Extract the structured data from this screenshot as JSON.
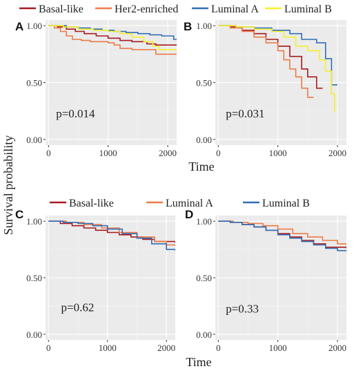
{
  "figure": {
    "y_axis_label": "Survival probability",
    "top_x_label": "Time",
    "bottom_x_label": "Time"
  },
  "legends": {
    "top": [
      {
        "label": "Basal-like",
        "color": "#a8191d"
      },
      {
        "label": "Her2-enriched",
        "color": "#ee7a47"
      },
      {
        "label": "Luminal A",
        "color": "#2f6eb5"
      },
      {
        "label": "Luminal B",
        "color": "#f5f02a"
      }
    ],
    "bottom": [
      {
        "label": "Basal-like",
        "color": "#a8191d"
      },
      {
        "label": "Luminal A",
        "color": "#ee7a47"
      },
      {
        "label": "Luminal B",
        "color": "#2f6eb5"
      }
    ]
  },
  "chart_data": [
    {
      "type": "line",
      "panel_label": "A",
      "annotation": "p=0.014",
      "xlabel": "Time",
      "ylabel": "Survival probability",
      "xlim": [
        -50,
        2150
      ],
      "ylim": [
        -0.05,
        1.05
      ],
      "x_ticks": [
        0,
        1000,
        2000
      ],
      "y_ticks": [
        0.0,
        0.5,
        1.0
      ],
      "y_tick_labels": [
        "0.00",
        "0.50",
        "1.00"
      ],
      "grid": true,
      "legend": "top",
      "series": [
        {
          "name": "Basal-like",
          "color": "#a8191d",
          "x": [
            0,
            150,
            300,
            450,
            600,
            800,
            1000,
            1200,
            1400,
            1650,
            1800,
            2150
          ],
          "y": [
            1.0,
            0.99,
            0.97,
            0.95,
            0.93,
            0.91,
            0.89,
            0.87,
            0.86,
            0.84,
            0.83,
            0.83
          ]
        },
        {
          "name": "Her2-enriched",
          "color": "#ee7a47",
          "x": [
            0,
            100,
            200,
            300,
            400,
            550,
            700,
            1000,
            1100,
            1200,
            1400,
            1800,
            2150
          ],
          "y": [
            1.0,
            0.98,
            0.95,
            0.91,
            0.88,
            0.87,
            0.86,
            0.85,
            0.83,
            0.8,
            0.79,
            0.75,
            0.75
          ]
        },
        {
          "name": "Luminal A",
          "color": "#2f6eb5",
          "x": [
            0,
            300,
            500,
            700,
            900,
            1100,
            1300,
            1500,
            1700,
            1900,
            2100,
            2150
          ],
          "y": [
            1.0,
            0.99,
            0.98,
            0.97,
            0.96,
            0.95,
            0.94,
            0.93,
            0.92,
            0.91,
            0.88,
            0.88
          ]
        },
        {
          "name": "Luminal B",
          "color": "#f5f02a",
          "x": [
            0,
            250,
            500,
            750,
            1000,
            1200,
            1400,
            1600,
            1750,
            1850,
            2150
          ],
          "y": [
            1.0,
            0.99,
            0.97,
            0.96,
            0.95,
            0.93,
            0.9,
            0.86,
            0.82,
            0.79,
            0.78
          ]
        }
      ]
    },
    {
      "type": "line",
      "panel_label": "B",
      "annotation": "p=0.031",
      "xlabel": "Time",
      "ylabel": "Survival probability",
      "xlim": [
        -50,
        2150
      ],
      "ylim": [
        -0.05,
        1.05
      ],
      "x_ticks": [
        0,
        1000,
        2000
      ],
      "y_ticks": [
        0.0,
        0.5,
        1.0
      ],
      "y_tick_labels": [
        "0.00",
        "0.50",
        "1.00"
      ],
      "grid": true,
      "legend": "top",
      "series": [
        {
          "name": "Basal-like",
          "color": "#a8191d",
          "x": [
            0,
            200,
            400,
            600,
            800,
            1000,
            1200,
            1400,
            1500,
            1650,
            1750
          ],
          "y": [
            1.0,
            0.99,
            0.96,
            0.93,
            0.88,
            0.82,
            0.73,
            0.62,
            0.55,
            0.45,
            0.45
          ]
        },
        {
          "name": "Her2-enriched",
          "color": "#ee7a47",
          "x": [
            0,
            200,
            400,
            600,
            800,
            1000,
            1100,
            1200,
            1300,
            1400,
            1500,
            1600
          ],
          "y": [
            1.0,
            0.98,
            0.95,
            0.9,
            0.85,
            0.78,
            0.7,
            0.62,
            0.55,
            0.45,
            0.37,
            0.37
          ]
        },
        {
          "name": "Luminal A",
          "color": "#2f6eb5",
          "x": [
            0,
            300,
            600,
            900,
            1200,
            1400,
            1650,
            1800,
            1900,
            2000
          ],
          "y": [
            1.0,
            0.99,
            0.98,
            0.96,
            0.93,
            0.88,
            0.85,
            0.71,
            0.48,
            0.48
          ]
        },
        {
          "name": "Luminal B",
          "color": "#f5f02a",
          "x": [
            0,
            300,
            600,
            900,
            1100,
            1300,
            1500,
            1700,
            1800,
            1900,
            1950
          ],
          "y": [
            1.0,
            0.99,
            0.97,
            0.95,
            0.9,
            0.82,
            0.78,
            0.7,
            0.6,
            0.4,
            0.24
          ]
        }
      ]
    },
    {
      "type": "line",
      "panel_label": "C",
      "annotation": "p=0.62",
      "xlabel": "Time",
      "ylabel": "Survival probability",
      "xlim": [
        -50,
        2150
      ],
      "ylim": [
        -0.05,
        1.05
      ],
      "x_ticks": [
        0,
        1000,
        2000
      ],
      "y_ticks": [
        0.0,
        0.5,
        1.0
      ],
      "y_tick_labels": [
        "0.00",
        "0.50",
        "1.00"
      ],
      "grid": true,
      "legend": "top",
      "series": [
        {
          "name": "Basal-like",
          "color": "#a8191d",
          "x": [
            0,
            200,
            400,
            600,
            800,
            1000,
            1200,
            1400,
            1600,
            1800,
            2150
          ],
          "y": [
            1.0,
            0.98,
            0.96,
            0.94,
            0.92,
            0.9,
            0.88,
            0.86,
            0.84,
            0.82,
            0.81
          ]
        },
        {
          "name": "Luminal A",
          "color": "#ee7a47",
          "x": [
            0,
            300,
            600,
            900,
            1200,
            1500,
            1800,
            2000,
            2150
          ],
          "y": [
            1.0,
            0.99,
            0.97,
            0.94,
            0.9,
            0.86,
            0.82,
            0.79,
            0.78
          ]
        },
        {
          "name": "Luminal B",
          "color": "#2f6eb5",
          "x": [
            0,
            250,
            500,
            750,
            1000,
            1250,
            1500,
            1750,
            2000,
            2150
          ],
          "y": [
            1.0,
            0.99,
            0.98,
            0.96,
            0.93,
            0.89,
            0.85,
            0.8,
            0.75,
            0.74
          ]
        }
      ]
    },
    {
      "type": "line",
      "panel_label": "D",
      "annotation": "p=0.33",
      "xlabel": "Time",
      "ylabel": "Survival probability",
      "xlim": [
        -50,
        2150
      ],
      "ylim": [
        -0.05,
        1.05
      ],
      "x_ticks": [
        0,
        1000,
        2000
      ],
      "y_ticks": [
        0.0,
        0.5,
        1.0
      ],
      "y_tick_labels": [
        "0.00",
        "0.50",
        "1.00"
      ],
      "grid": true,
      "legend": "top",
      "series": [
        {
          "name": "Basal-like",
          "color": "#a8191d",
          "x": [
            0,
            200,
            400,
            600,
            800,
            1000,
            1200,
            1400,
            1600,
            1800,
            2150
          ],
          "y": [
            1.0,
            0.99,
            0.97,
            0.95,
            0.92,
            0.89,
            0.86,
            0.83,
            0.8,
            0.77,
            0.76
          ]
        },
        {
          "name": "Luminal A",
          "color": "#ee7a47",
          "x": [
            0,
            250,
            500,
            750,
            1000,
            1250,
            1500,
            1750,
            2000,
            2150
          ],
          "y": [
            1.0,
            0.99,
            0.98,
            0.96,
            0.93,
            0.89,
            0.86,
            0.83,
            0.8,
            0.79
          ]
        },
        {
          "name": "Luminal B",
          "color": "#2f6eb5",
          "x": [
            0,
            200,
            400,
            600,
            800,
            1000,
            1200,
            1400,
            1600,
            1800,
            2000,
            2150
          ],
          "y": [
            1.0,
            0.99,
            0.97,
            0.95,
            0.92,
            0.88,
            0.85,
            0.82,
            0.79,
            0.76,
            0.74,
            0.73
          ]
        }
      ]
    }
  ]
}
